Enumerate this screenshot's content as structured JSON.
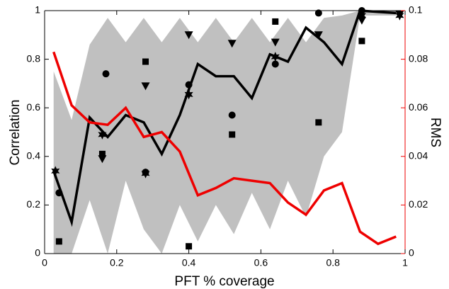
{
  "chart_data": {
    "type": "line",
    "xlabel": "PFT % coverage",
    "ylabel": "Correlation",
    "y2label": "RMS",
    "x": [
      0.025,
      0.075,
      0.125,
      0.175,
      0.225,
      0.275,
      0.325,
      0.375,
      0.425,
      0.475,
      0.525,
      0.575,
      0.625,
      0.675,
      0.725,
      0.775,
      0.825,
      0.875,
      0.925,
      0.975
    ],
    "band": {
      "color": "#c0c0c0",
      "upper": [
        0.75,
        0.55,
        0.86,
        0.97,
        0.87,
        0.97,
        0.87,
        0.97,
        0.87,
        0.97,
        0.87,
        0.97,
        0.87,
        0.97,
        0.87,
        0.97,
        0.98,
        1.0,
        1.0,
        1.0
      ],
      "lower": [
        0,
        0,
        0.22,
        0,
        0.3,
        0.1,
        0,
        0.2,
        0.05,
        0.2,
        0.08,
        0.25,
        0.1,
        0.3,
        0.15,
        0.4,
        0.5,
        0.98,
        0.98,
        0.98
      ]
    },
    "series": [
      {
        "color": "#000000",
        "values": [
          0.34,
          0.13,
          0.56,
          0.48,
          0.57,
          0.54,
          0.41,
          0.57,
          0.78,
          0.73,
          0.73,
          0.64,
          0.82,
          0.79,
          0.93,
          0.87,
          0.78,
          1.0,
          0.995,
          0.99
        ]
      },
      {
        "color": "#ee0000",
        "axis": "y2",
        "values": [
          0.083,
          0.061,
          0.054,
          0.053,
          0.06,
          0.048,
          0.05,
          0.042,
          0.024,
          0.027,
          0.031,
          0.03,
          0.029,
          0.021,
          0.016,
          0.026,
          0.029,
          0.009,
          0.004,
          0.007
        ]
      }
    ],
    "scatter": [
      {
        "marker": "circle",
        "x": [
          0.04,
          0.17,
          0.28,
          0.4,
          0.52,
          0.64,
          0.76,
          0.88
        ],
        "y": [
          0.25,
          0.74,
          0.335,
          0.695,
          0.57,
          0.78,
          0.99,
          1.0
        ]
      },
      {
        "marker": "square",
        "x": [
          0.04,
          0.16,
          0.28,
          0.4,
          0.52,
          0.64,
          0.76,
          0.88
        ],
        "y": [
          0.05,
          0.41,
          0.79,
          0.03,
          0.49,
          0.955,
          0.54,
          0.875
        ]
      },
      {
        "marker": "triangle-down",
        "x": [
          0.16,
          0.28,
          0.4,
          0.52,
          0.64,
          0.76,
          0.88,
          0.985
        ],
        "y": [
          0.39,
          0.69,
          0.9,
          0.865,
          0.87,
          0.9,
          0.96,
          0.985
        ]
      },
      {
        "marker": "star",
        "x": [
          0.03,
          0.16,
          0.28,
          0.4,
          0.64,
          0.88,
          0.985
        ],
        "y": [
          0.34,
          0.49,
          0.33,
          0.655,
          0.81,
          0.98,
          0.98
        ]
      }
    ],
    "xlim": [
      0,
      1
    ],
    "xticks": [
      0,
      0.2,
      0.4,
      0.6,
      0.8,
      1
    ],
    "ylim": [
      0,
      1
    ],
    "yticks": [
      0,
      0.2,
      0.4,
      0.6,
      0.8,
      1
    ],
    "y2lim": [
      0,
      0.1
    ],
    "y2ticks": [
      0,
      0.02,
      0.04,
      0.06,
      0.08,
      0.1
    ],
    "y2color": "#ee0000"
  }
}
